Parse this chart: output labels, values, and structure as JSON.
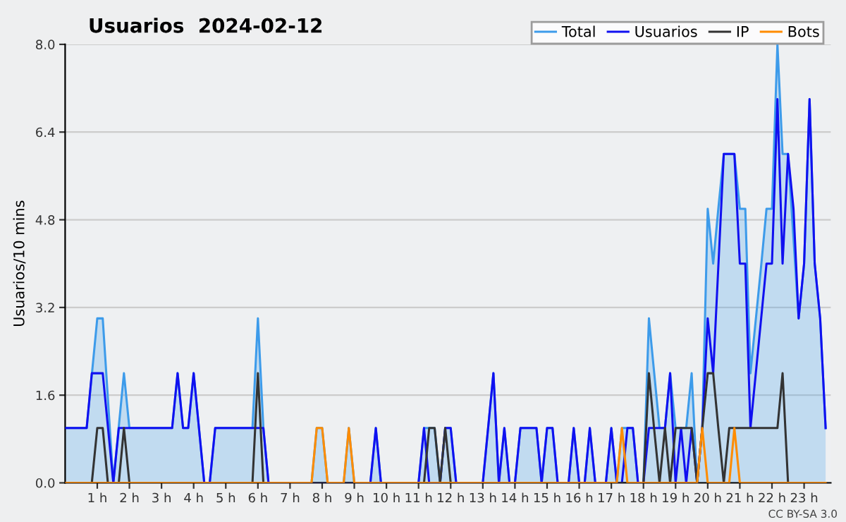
{
  "chart_data": {
    "type": "line",
    "title": "Usuarios  2024-02-12",
    "ylabel": "Usuarios/10 mins",
    "annotations": [
      "CC BY-SA 3.0"
    ],
    "xlim": [
      0,
      23.83
    ],
    "ylim": [
      0,
      8
    ],
    "xticks": [
      {
        "value": 1,
        "label": "1 h"
      },
      {
        "value": 2,
        "label": "2 h"
      },
      {
        "value": 3,
        "label": "3 h"
      },
      {
        "value": 4,
        "label": "4 h"
      },
      {
        "value": 5,
        "label": "5 h"
      },
      {
        "value": 6,
        "label": "6 h"
      },
      {
        "value": 7,
        "label": "7 h"
      },
      {
        "value": 8,
        "label": "8 h"
      },
      {
        "value": 9,
        "label": "9 h"
      },
      {
        "value": 10,
        "label": "10 h"
      },
      {
        "value": 11,
        "label": "11 h"
      },
      {
        "value": 12,
        "label": "12 h"
      },
      {
        "value": 13,
        "label": "13 h"
      },
      {
        "value": 14,
        "label": "14 h"
      },
      {
        "value": 15,
        "label": "15 h"
      },
      {
        "value": 16,
        "label": "16 h"
      },
      {
        "value": 17,
        "label": "17 h"
      },
      {
        "value": 18,
        "label": "18 h"
      },
      {
        "value": 19,
        "label": "19 h"
      },
      {
        "value": 20,
        "label": "20 h"
      },
      {
        "value": 21,
        "label": "21 h"
      },
      {
        "value": 22,
        "label": "22 h"
      },
      {
        "value": 23,
        "label": "23 h"
      }
    ],
    "yticks": [
      {
        "value": 0,
        "label": "0.0"
      },
      {
        "value": 1.6,
        "label": "1.6"
      },
      {
        "value": 3.2,
        "label": "3.2"
      },
      {
        "value": 4.8,
        "label": "4.8"
      },
      {
        "value": 6.4,
        "label": "6.4"
      },
      {
        "value": 8,
        "label": "8.0"
      }
    ],
    "grid": "y",
    "legend": "top right",
    "marker": "none",
    "line_style": "solid",
    "series": [
      {
        "name": "Total",
        "type": "area",
        "color": "#3d9bea",
        "x": [
          0,
          0.67,
          1,
          1.17,
          1.5,
          1.83,
          2,
          3.33,
          3.5,
          3.67,
          3.83,
          4,
          4.33,
          4.5,
          4.67,
          5.83,
          6,
          6.17,
          6.33,
          7.67,
          7.83,
          8,
          8.17,
          8.67,
          8.83,
          9,
          9.5,
          9.67,
          9.83,
          11,
          11.17,
          11.5,
          11.67,
          11.83,
          12,
          12.17,
          13,
          13.33,
          13.5,
          13.67,
          13.83,
          14,
          14.17,
          14.67,
          14.83,
          15,
          15.17,
          15.33,
          15.67,
          15.83,
          16,
          16.17,
          16.33,
          16.5,
          16.83,
          17,
          17.17,
          17.33,
          17.67,
          17.83,
          18,
          18.17,
          18.5,
          18.67,
          18.83,
          19,
          19.33,
          19.5,
          19.67,
          19.83,
          20,
          20.17,
          20.33,
          20.5,
          20.83,
          21,
          21.17,
          21.33,
          21.67,
          21.83,
          22,
          22.17,
          22.33,
          22.5,
          22.83,
          23,
          23.17,
          23.33,
          23.5,
          23.67
        ],
        "values": [
          1,
          1,
          3,
          3,
          0,
          2,
          1,
          1,
          2,
          1,
          1,
          2,
          0,
          0,
          1,
          1,
          3,
          1,
          0,
          0,
          1,
          1,
          0,
          0,
          1,
          0,
          0,
          1,
          0,
          0,
          1,
          1,
          0,
          1,
          1,
          0,
          0,
          2,
          0,
          1,
          0,
          0,
          1,
          1,
          0,
          1,
          1,
          0,
          0,
          1,
          0,
          0,
          1,
          0,
          0,
          1,
          0,
          1,
          1,
          0,
          0,
          3,
          1,
          1,
          2,
          1,
          1,
          2,
          0,
          1,
          5,
          4,
          5,
          6,
          6,
          5,
          5,
          2,
          4,
          5,
          5,
          8,
          6,
          6,
          3,
          4,
          7,
          4,
          3,
          1
        ]
      },
      {
        "name": "Usuarios",
        "color": "#1010f0",
        "x": [
          0,
          0.67,
          0.83,
          1.17,
          1.5,
          1.67,
          3.33,
          3.5,
          3.67,
          3.83,
          4,
          4.33,
          4.5,
          4.67,
          6.17,
          6.33,
          9.5,
          9.67,
          9.83,
          11,
          11.17,
          11.33,
          11.67,
          11.83,
          12,
          12.17,
          13,
          13.33,
          13.5,
          13.67,
          13.83,
          14,
          14.17,
          14.67,
          14.83,
          15,
          15.17,
          15.33,
          15.67,
          15.83,
          16,
          16.17,
          16.33,
          16.5,
          16.83,
          17,
          17.17,
          17.33,
          17.5,
          17.67,
          17.83,
          18,
          18.17,
          18.67,
          18.83,
          19,
          19.17,
          19.33,
          19.5,
          19.67,
          19.83,
          20,
          20.17,
          20.5,
          20.83,
          21,
          21.17,
          21.33,
          21.83,
          22,
          22.17,
          22.33,
          22.5,
          22.67,
          22.83,
          23,
          23.17,
          23.33,
          23.5,
          23.67
        ],
        "values": [
          1,
          1,
          2,
          2,
          0,
          1,
          1,
          2,
          1,
          1,
          2,
          0,
          0,
          1,
          1,
          0,
          0,
          1,
          0,
          0,
          1,
          0,
          0,
          1,
          1,
          0,
          0,
          2,
          0,
          1,
          0,
          0,
          1,
          1,
          0,
          1,
          1,
          0,
          0,
          1,
          0,
          0,
          1,
          0,
          0,
          1,
          0,
          0,
          1,
          1,
          0,
          0,
          1,
          1,
          2,
          0,
          1,
          0,
          1,
          0,
          1,
          3,
          2,
          6,
          6,
          4,
          4,
          1,
          4,
          4,
          7,
          4,
          6,
          5,
          3,
          4,
          7,
          4,
          3,
          1
        ]
      },
      {
        "name": "IP",
        "color": "#333333",
        "x": [
          0,
          0.83,
          1,
          1.17,
          1.33,
          1.67,
          1.83,
          2,
          5.83,
          6,
          6.17,
          11.17,
          11.33,
          11.5,
          11.67,
          11.83,
          12,
          18,
          18.17,
          18.33,
          18.5,
          18.67,
          18.83,
          19,
          19.5,
          19.67,
          19.83,
          20,
          20.17,
          20.33,
          20.5,
          20.67,
          22.17,
          22.33,
          22.5,
          23.67
        ],
        "values": [
          0,
          0,
          1,
          1,
          0,
          0,
          1,
          0,
          0,
          2,
          0,
          0,
          1,
          1,
          0,
          1,
          0,
          0,
          2,
          1,
          0,
          1,
          0,
          1,
          1,
          0,
          1,
          2,
          2,
          1,
          0,
          1,
          1,
          2,
          0,
          0
        ]
      },
      {
        "name": "Bots",
        "color": "#ff8c00",
        "x": [
          0,
          7.67,
          7.83,
          8,
          8.17,
          8.67,
          8.83,
          9,
          17.17,
          17.33,
          17.5,
          19.67,
          19.83,
          20,
          20.67,
          20.83,
          21,
          23.67
        ],
        "values": [
          0,
          0,
          1,
          1,
          0,
          0,
          1,
          0,
          0,
          1,
          0,
          0,
          1,
          0,
          0,
          1,
          0,
          0
        ]
      }
    ]
  }
}
